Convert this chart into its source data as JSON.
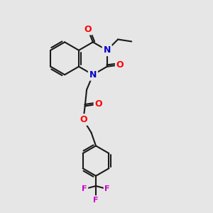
{
  "bg_color": "#e6e6e6",
  "bond_color": "#1a1a1a",
  "bond_width": 1.5,
  "atom_colors": {
    "O": "#ff0000",
    "N": "#0000cc",
    "F": "#cc00cc",
    "C": "#1a1a1a"
  },
  "font_size_atom": 9
}
